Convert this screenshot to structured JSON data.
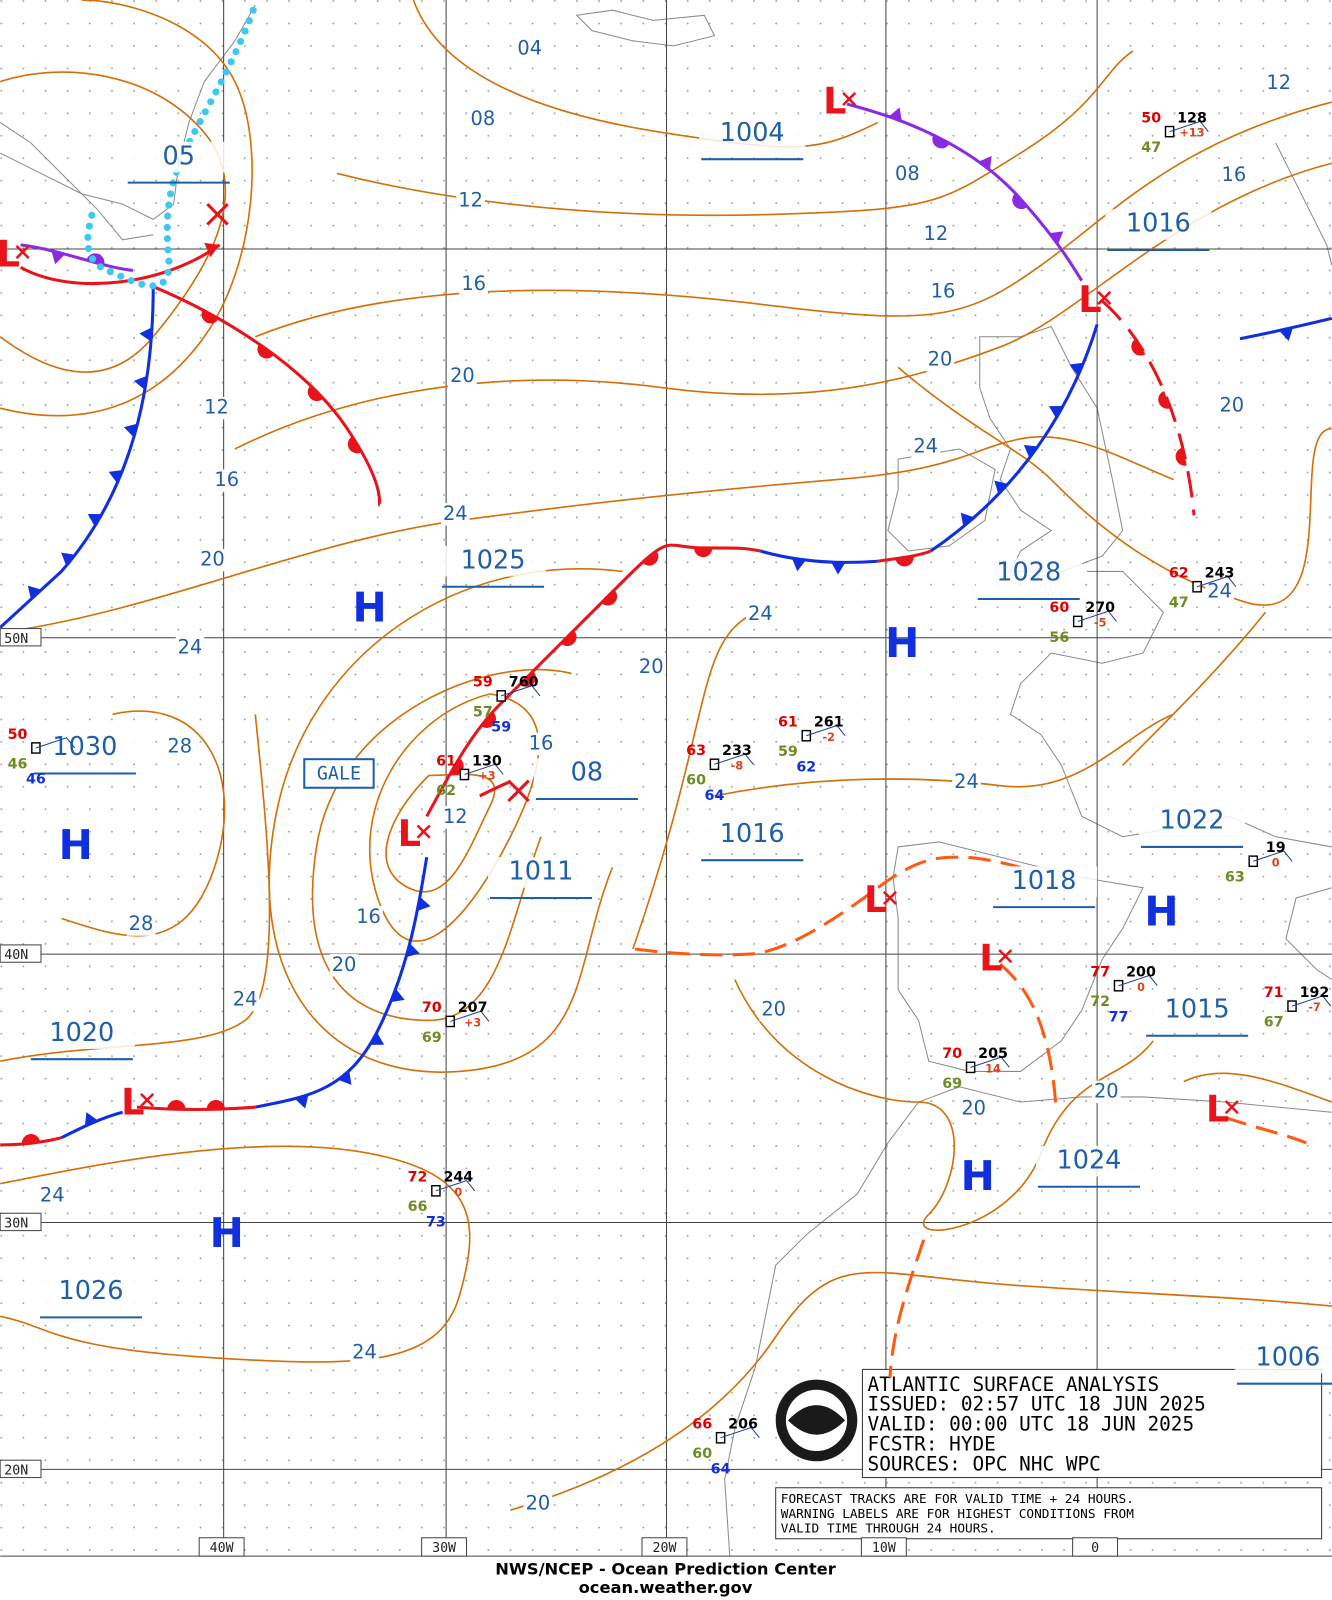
{
  "grid_labels": {
    "lat": [
      "50N",
      "40N",
      "30N",
      "20N"
    ],
    "lon": [
      "40W",
      "30W",
      "20W",
      "10W",
      "0"
    ]
  },
  "pressure_centers": [
    "1004",
    "1016",
    "1025",
    "1030",
    "1028",
    "08",
    "1016",
    "1011",
    "1022",
    "1018",
    "1020",
    "1015",
    "1024",
    "1026",
    "05",
    "1006"
  ],
  "isobar_labels": [
    "04",
    "08",
    "12",
    "16",
    "20",
    "24",
    "08",
    "12",
    "16",
    "20",
    "24",
    "20",
    "12",
    "16",
    "12",
    "16",
    "20",
    "24",
    "24",
    "24",
    "20",
    "16",
    "12",
    "28",
    "24",
    "16",
    "20",
    "28",
    "24",
    "20",
    "20",
    "20",
    "24",
    "24",
    "20"
  ],
  "highs": [
    "H",
    "H",
    "H",
    "H",
    "H",
    "H"
  ],
  "lows": [
    "L",
    "L",
    "L",
    "L",
    "L",
    "L",
    "L",
    "L"
  ],
  "gale": "GALE",
  "stations": [
    {
      "temp": "50",
      "pressure": "128",
      "tendency": "+13",
      "dewpoint": "47"
    },
    {
      "temp": "59",
      "pressure": "760",
      "dewpoint": "57",
      "sst": "59"
    },
    {
      "temp": "61",
      "pressure": "130",
      "tendency": "+3",
      "dewpoint": "62"
    },
    {
      "temp": "63",
      "pressure": "233",
      "tendency": "-8",
      "dewpoint": "60",
      "sst": "64"
    },
    {
      "temp": "61",
      "pressure": "261",
      "tendency": "-2",
      "dewpoint": "59",
      "sst": "62"
    },
    {
      "temp": "60",
      "pressure": "270",
      "tendency": "-5",
      "dewpoint": "56"
    },
    {
      "temp": "62",
      "pressure": "243",
      "dewpoint": "47"
    },
    {
      "temp": "50",
      "dewpoint": "46",
      "sst": "46"
    },
    {
      "temp": "70",
      "pressure": "207",
      "tendency": "+3",
      "dewpoint": "69"
    },
    {
      "temp": "77",
      "pressure": "200",
      "tendency": "0",
      "dewpoint": "72",
      "sst": "77"
    },
    {
      "temp": "70",
      "pressure": "205",
      "tendency": "14",
      "dewpoint": "69"
    },
    {
      "temp": "72",
      "pressure": "244",
      "tendency": "0",
      "dewpoint": "66",
      "sst": "73"
    },
    {
      "temp": "66",
      "pressure": "206",
      "dewpoint": "60",
      "sst": "64"
    },
    {
      "temp": "71",
      "pressure": "192",
      "tendency": "-7",
      "dewpoint": "67"
    },
    {
      "pressure": "19",
      "tendency": "0",
      "dewpoint": "63"
    }
  ],
  "info_box": [
    "ATLANTIC SURFACE ANALYSIS",
    "ISSUED: 02:57 UTC 18 JUN 2025",
    "VALID:  00:00 UTC 18 JUN 2025",
    "FCSTR:  HYDE",
    "SOURCES: OPC NHC WPC"
  ],
  "notes": [
    "FORECAST TRACKS ARE FOR VALID TIME + 24 HOURS.",
    "WARNING LABELS ARE FOR HIGHEST CONDITIONS FROM",
    "VALID TIME THROUGH 24 HOURS."
  ],
  "footer": {
    "agency": "NWS/NCEP - Ocean Prediction Center",
    "url": "ocean.weather.gov"
  }
}
